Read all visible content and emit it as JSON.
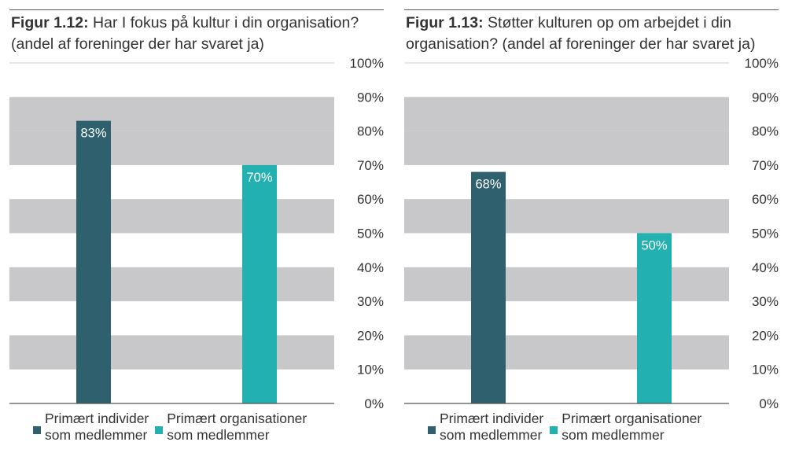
{
  "colors": {
    "series1": "#2f606e",
    "series2": "#22b1b0",
    "band": "#c8c8ca",
    "baseline": "#555555"
  },
  "legend": [
    {
      "line1": "Primært individer",
      "line2": "som medlemmer",
      "color_key": "series1"
    },
    {
      "line1": "Primært organisationer",
      "line2": "som medlemmer",
      "color_key": "series2"
    }
  ],
  "figures": [
    {
      "label": "Figur 1.12:",
      "title": "Har I fokus på kultur i din organisation?",
      "subtitle": "(andel af foreninger der har svaret ja)"
    },
    {
      "label": "Figur 1.13:",
      "title": "Støtter kulturen op om arbejdet i din organisation?",
      "subtitle": "(andel af foreninger der har svaret ja)"
    }
  ],
  "chart_data": [
    {
      "type": "bar",
      "title": "Figur 1.12: Har I fokus på kultur i din organisation? (andel af foreninger der har svaret ja)",
      "categories": [
        "Primært individer som medlemmer",
        "Primært organisationer som medlemmer"
      ],
      "values": [
        83,
        70
      ],
      "data_labels": [
        "83%",
        "70%"
      ],
      "ylim": [
        0,
        100
      ],
      "yticks": [
        "0%",
        "10%",
        "20%",
        "30%",
        "40%",
        "50%",
        "60%",
        "70%",
        "80%",
        "90%",
        "100%"
      ],
      "y_axis_position": "right",
      "grid": "alternating horizontal bands",
      "legend_position": "bottom"
    },
    {
      "type": "bar",
      "title": "Figur 1.13: Støtter kulturen op om arbejdet i din organisation? (andel af foreninger der har svaret ja)",
      "categories": [
        "Primært individer som medlemmer",
        "Primært organisationer som medlemmer"
      ],
      "values": [
        68,
        50
      ],
      "data_labels": [
        "68%",
        "50%"
      ],
      "ylim": [
        0,
        100
      ],
      "yticks": [
        "0%",
        "10%",
        "20%",
        "30%",
        "40%",
        "50%",
        "60%",
        "70%",
        "80%",
        "90%",
        "100%"
      ],
      "y_axis_position": "right",
      "grid": "alternating horizontal bands",
      "legend_position": "bottom"
    }
  ]
}
